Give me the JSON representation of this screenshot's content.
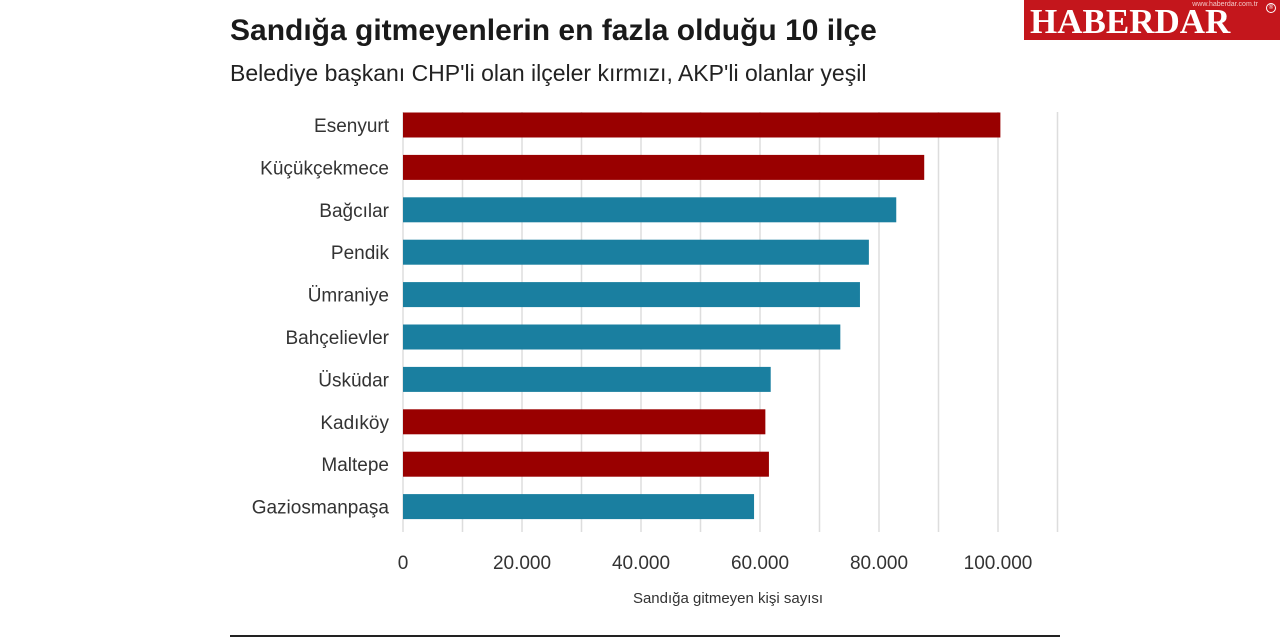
{
  "title": "Sandığa gitmeyenlerin en fazla olduğu 10 ilçe",
  "subtitle": "Belediye başkanı CHP'li olan ilçeler kırmızı, AKP'li olanlar yeşil",
  "logo": {
    "text": "HABERDAR",
    "small_text": "www.haberdar.com.tr",
    "mark": "®"
  },
  "colors": {
    "chp": "#990000",
    "akp": "#1a7fa0",
    "grid": "#dddddd",
    "text": "#333333"
  },
  "chart_data": {
    "type": "bar",
    "orientation": "horizontal",
    "title": "Sandığa gitmeyenlerin en fazla olduğu 10 ilçe",
    "subtitle": "Belediye başkanı CHP'li olan ilçeler kırmızı, AKP'li olanlar yeşil",
    "xlabel": "Sandığa gitmeyen kişi sayısı",
    "ylabel": "",
    "xlim": [
      0,
      110000
    ],
    "grid": true,
    "ticks": [
      {
        "value": 0,
        "label": "0"
      },
      {
        "value": 20000,
        "label": "20.000"
      },
      {
        "value": 40000,
        "label": "40.000"
      },
      {
        "value": 60000,
        "label": "60.000"
      },
      {
        "value": 80000,
        "label": "80.000"
      },
      {
        "value": 100000,
        "label": "100.000"
      }
    ],
    "categories": [
      "Esenyurt",
      "Küçükçekmece",
      "Bağcılar",
      "Pendik",
      "Ümraniye",
      "Bahçelievler",
      "Üsküdar",
      "Kadıköy",
      "Maltepe",
      "Gaziosmanpaşa"
    ],
    "values": [
      100400,
      87600,
      82900,
      78300,
      76800,
      73500,
      61800,
      60900,
      61500,
      59000
    ],
    "party": [
      "chp",
      "chp",
      "akp",
      "akp",
      "akp",
      "akp",
      "akp",
      "chp",
      "chp",
      "akp"
    ]
  }
}
